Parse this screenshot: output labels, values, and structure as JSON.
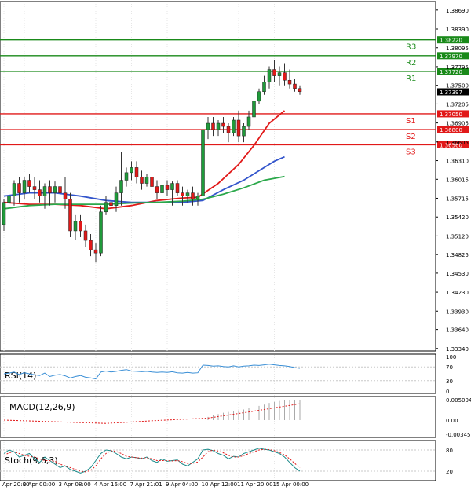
{
  "chart_data": {
    "type": "candlestick",
    "price_axis": {
      "range": [
        1.333,
        1.3875
      ],
      "ticks": [
        "1.38690",
        "1.38390",
        "1.38095",
        "1.37795",
        "1.37500",
        "1.37205",
        "1.36905",
        "1.36605",
        "1.36310",
        "1.36015",
        "1.35715",
        "1.35420",
        "1.35120",
        "1.34825",
        "1.34530",
        "1.34230",
        "1.33930",
        "1.33640",
        "1.33340"
      ]
    },
    "x_labels": [
      "Apr 20:00",
      "2 Apr 00:00",
      "3 Apr 08:00",
      "4 Apr 16:00",
      "7 Apr 21:01",
      "9 Apr 04:00",
      "10 Apr 12:00",
      "11 Apr 20:00",
      "15 Apr 00:00"
    ],
    "current_price": {
      "value": 1.37397,
      "label": "1.37397"
    },
    "levels": [
      {
        "name": "R3",
        "value": 1.3822,
        "label": "1.38220",
        "color": "#1a8a1a"
      },
      {
        "name": "R2",
        "value": 1.3797,
        "label": "1.37970",
        "color": "#1a8a1a"
      },
      {
        "name": "R1",
        "value": 1.3772,
        "label": "1.37720",
        "color": "#1a8a1a"
      },
      {
        "name": "S1",
        "value": 1.3705,
        "label": "1.37050",
        "color": "#e11919"
      },
      {
        "name": "S2",
        "value": 1.368,
        "label": "1.36800",
        "color": "#e11919"
      },
      {
        "name": "S3",
        "value": 1.3656,
        "label": "1.36560",
        "color": "#e11919"
      }
    ],
    "candles": [
      {
        "o": 1.353,
        "h": 1.357,
        "l": 1.352,
        "c": 1.3565
      },
      {
        "o": 1.3565,
        "h": 1.359,
        "l": 1.354,
        "c": 1.3575
      },
      {
        "o": 1.3575,
        "h": 1.36,
        "l": 1.356,
        "c": 1.3595
      },
      {
        "o": 1.3595,
        "h": 1.3605,
        "l": 1.3565,
        "c": 1.358
      },
      {
        "o": 1.358,
        "h": 1.3605,
        "l": 1.357,
        "c": 1.36
      },
      {
        "o": 1.36,
        "h": 1.361,
        "l": 1.358,
        "c": 1.359
      },
      {
        "o": 1.359,
        "h": 1.3605,
        "l": 1.357,
        "c": 1.3585
      },
      {
        "o": 1.3585,
        "h": 1.36,
        "l": 1.3565,
        "c": 1.3575
      },
      {
        "o": 1.3575,
        "h": 1.3595,
        "l": 1.3555,
        "c": 1.359
      },
      {
        "o": 1.359,
        "h": 1.36,
        "l": 1.356,
        "c": 1.358
      },
      {
        "o": 1.358,
        "h": 1.3598,
        "l": 1.3565,
        "c": 1.359
      },
      {
        "o": 1.359,
        "h": 1.3605,
        "l": 1.3575,
        "c": 1.358
      },
      {
        "o": 1.358,
        "h": 1.3605,
        "l": 1.3555,
        "c": 1.357
      },
      {
        "o": 1.357,
        "h": 1.358,
        "l": 1.351,
        "c": 1.352
      },
      {
        "o": 1.352,
        "h": 1.3545,
        "l": 1.3505,
        "c": 1.3535
      },
      {
        "o": 1.3535,
        "h": 1.3545,
        "l": 1.351,
        "c": 1.352
      },
      {
        "o": 1.352,
        "h": 1.353,
        "l": 1.3495,
        "c": 1.3505
      },
      {
        "o": 1.3505,
        "h": 1.3515,
        "l": 1.348,
        "c": 1.349
      },
      {
        "o": 1.349,
        "h": 1.35,
        "l": 1.347,
        "c": 1.3485
      },
      {
        "o": 1.3485,
        "h": 1.356,
        "l": 1.348,
        "c": 1.355
      },
      {
        "o": 1.355,
        "h": 1.3575,
        "l": 1.3545,
        "c": 1.3565
      },
      {
        "o": 1.3565,
        "h": 1.358,
        "l": 1.3555,
        "c": 1.356
      },
      {
        "o": 1.356,
        "h": 1.359,
        "l": 1.355,
        "c": 1.358
      },
      {
        "o": 1.358,
        "h": 1.3645,
        "l": 1.356,
        "c": 1.36
      },
      {
        "o": 1.36,
        "h": 1.362,
        "l": 1.359,
        "c": 1.3612
      },
      {
        "o": 1.3612,
        "h": 1.363,
        "l": 1.36,
        "c": 1.362
      },
      {
        "o": 1.362,
        "h": 1.363,
        "l": 1.3595,
        "c": 1.3605
      },
      {
        "o": 1.3605,
        "h": 1.3615,
        "l": 1.3585,
        "c": 1.3595
      },
      {
        "o": 1.3595,
        "h": 1.361,
        "l": 1.359,
        "c": 1.3605
      },
      {
        "o": 1.3605,
        "h": 1.3612,
        "l": 1.358,
        "c": 1.359
      },
      {
        "o": 1.359,
        "h": 1.36,
        "l": 1.357,
        "c": 1.358
      },
      {
        "o": 1.358,
        "h": 1.3598,
        "l": 1.357,
        "c": 1.3592
      },
      {
        "o": 1.3592,
        "h": 1.36,
        "l": 1.3575,
        "c": 1.3585
      },
      {
        "o": 1.3585,
        "h": 1.3598,
        "l": 1.356,
        "c": 1.3595
      },
      {
        "o": 1.3595,
        "h": 1.36,
        "l": 1.3575,
        "c": 1.358
      },
      {
        "o": 1.358,
        "h": 1.359,
        "l": 1.356,
        "c": 1.3575
      },
      {
        "o": 1.3575,
        "h": 1.3585,
        "l": 1.3565,
        "c": 1.358
      },
      {
        "o": 1.358,
        "h": 1.359,
        "l": 1.356,
        "c": 1.357
      },
      {
        "o": 1.357,
        "h": 1.358,
        "l": 1.356,
        "c": 1.3575
      },
      {
        "o": 1.3575,
        "h": 1.369,
        "l": 1.357,
        "c": 1.368
      },
      {
        "o": 1.368,
        "h": 1.37,
        "l": 1.3665,
        "c": 1.369
      },
      {
        "o": 1.369,
        "h": 1.37,
        "l": 1.367,
        "c": 1.368
      },
      {
        "o": 1.368,
        "h": 1.3695,
        "l": 1.367,
        "c": 1.369
      },
      {
        "o": 1.369,
        "h": 1.37,
        "l": 1.3675,
        "c": 1.3685
      },
      {
        "o": 1.3685,
        "h": 1.369,
        "l": 1.366,
        "c": 1.3675
      },
      {
        "o": 1.3675,
        "h": 1.37,
        "l": 1.367,
        "c": 1.3695
      },
      {
        "o": 1.3695,
        "h": 1.371,
        "l": 1.366,
        "c": 1.367
      },
      {
        "o": 1.367,
        "h": 1.369,
        "l": 1.366,
        "c": 1.3685
      },
      {
        "o": 1.3685,
        "h": 1.371,
        "l": 1.368,
        "c": 1.37
      },
      {
        "o": 1.37,
        "h": 1.3735,
        "l": 1.369,
        "c": 1.3725
      },
      {
        "o": 1.3725,
        "h": 1.3745,
        "l": 1.372,
        "c": 1.374
      },
      {
        "o": 1.374,
        "h": 1.3765,
        "l": 1.3735,
        "c": 1.3755
      },
      {
        "o": 1.3755,
        "h": 1.378,
        "l": 1.3745,
        "c": 1.3775
      },
      {
        "o": 1.3775,
        "h": 1.379,
        "l": 1.3755,
        "c": 1.3765
      },
      {
        "o": 1.3765,
        "h": 1.378,
        "l": 1.375,
        "c": 1.377
      },
      {
        "o": 1.377,
        "h": 1.3785,
        "l": 1.375,
        "c": 1.3758
      },
      {
        "o": 1.3758,
        "h": 1.3775,
        "l": 1.3745,
        "c": 1.3752
      },
      {
        "o": 1.3752,
        "h": 1.376,
        "l": 1.374,
        "c": 1.3745
      },
      {
        "o": 1.3745,
        "h": 1.375,
        "l": 1.3735,
        "c": 1.374
      }
    ],
    "moving_averages": [
      {
        "color": "#e11919",
        "points": [
          [
            0,
            1.3565
          ],
          [
            5,
            1.3562
          ],
          [
            10,
            1.3562
          ],
          [
            15,
            1.356
          ],
          [
            20,
            1.3555
          ],
          [
            25,
            1.356
          ],
          [
            30,
            1.3568
          ],
          [
            35,
            1.3572
          ],
          [
            38,
            1.3573
          ],
          [
            42,
            1.3595
          ],
          [
            46,
            1.3625
          ],
          [
            49,
            1.3655
          ],
          [
            52,
            1.369
          ],
          [
            55,
            1.371
          ]
        ]
      },
      {
        "color": "#3355cc",
        "points": [
          [
            0,
            1.3575
          ],
          [
            5,
            1.358
          ],
          [
            10,
            1.358
          ],
          [
            15,
            1.3575
          ],
          [
            20,
            1.3568
          ],
          [
            25,
            1.3565
          ],
          [
            30,
            1.3565
          ],
          [
            35,
            1.3565
          ],
          [
            39,
            1.3568
          ],
          [
            43,
            1.3585
          ],
          [
            47,
            1.36
          ],
          [
            50,
            1.3615
          ],
          [
            53,
            1.363
          ],
          [
            55,
            1.3637
          ]
        ]
      },
      {
        "color": "#2aa84a",
        "points": [
          [
            0,
            1.3555
          ],
          [
            5,
            1.356
          ],
          [
            10,
            1.3562
          ],
          [
            15,
            1.3562
          ],
          [
            20,
            1.3562
          ],
          [
            25,
            1.3564
          ],
          [
            30,
            1.3565
          ],
          [
            35,
            1.3567
          ],
          [
            39,
            1.357
          ],
          [
            43,
            1.3578
          ],
          [
            47,
            1.3588
          ],
          [
            51,
            1.36
          ],
          [
            55,
            1.3606
          ]
        ]
      }
    ],
    "rsi": {
      "title": "RSI(14)",
      "ticks": [
        "100",
        "70",
        "30",
        "0"
      ],
      "values": [
        50,
        52,
        55,
        48,
        53,
        50,
        47,
        45,
        52,
        42,
        46,
        48,
        44,
        38,
        42,
        45,
        40,
        38,
        35,
        55,
        58,
        55,
        57,
        60,
        62,
        58,
        57,
        56,
        57,
        55,
        54,
        55,
        54,
        56,
        53,
        52,
        54,
        52,
        53,
        75,
        74,
        72,
        73,
        71,
        70,
        73,
        70,
        72,
        73,
        75,
        74,
        76,
        78,
        76,
        74,
        73,
        71,
        68,
        66
      ]
    },
    "macd": {
      "title": "MACD(12,26,9)",
      "ticks": [
        "0.005004",
        "0.00",
        "-0.003457"
      ],
      "signal": [
        [
          0,
          0.0
        ],
        [
          10,
          -0.0004
        ],
        [
          20,
          -0.0008
        ],
        [
          30,
          -0.0001
        ],
        [
          40,
          0.0005
        ],
        [
          48,
          0.002
        ],
        [
          58,
          0.004
        ]
      ],
      "histogram": [
        0.0,
        0.0,
        0.0,
        0.0,
        0.0,
        0.0,
        0.0,
        0.0,
        0.0,
        0.0,
        0.0,
        0.0,
        0.0,
        0.0,
        0.0,
        0.0,
        0.0,
        0.0,
        0.0,
        0.0,
        0.0,
        0.0,
        0.0,
        0.0,
        0.0,
        0.0,
        0.0,
        0.0,
        0.0,
        0.0,
        0.0,
        0.0,
        0.0,
        0.0,
        0.0,
        0.0,
        0.0,
        0.0,
        0.0,
        0.0,
        0.0008,
        0.0012,
        0.0015,
        0.0018,
        0.002,
        0.0022,
        0.0024,
        0.0026,
        0.0029,
        0.0032,
        0.0035,
        0.0038,
        0.0042,
        0.0045,
        0.0047,
        0.0049,
        0.005,
        0.005,
        0.0049
      ]
    },
    "stoch": {
      "title": "Stoch(9,6,3)",
      "ticks": [
        "80",
        "20"
      ],
      "k": [
        70,
        80,
        75,
        60,
        65,
        70,
        55,
        45,
        60,
        50,
        40,
        30,
        35,
        25,
        20,
        15,
        20,
        30,
        50,
        70,
        80,
        78,
        70,
        60,
        55,
        60,
        58,
        55,
        60,
        50,
        45,
        55,
        48,
        50,
        52,
        40,
        35,
        45,
        55,
        80,
        82,
        78,
        70,
        65,
        55,
        62,
        60,
        70,
        75,
        80,
        85,
        82,
        80,
        75,
        70,
        60,
        45,
        30,
        20
      ],
      "d": [
        65,
        72,
        75,
        70,
        65,
        62,
        60,
        55,
        50,
        50,
        48,
        40,
        35,
        30,
        25,
        20,
        18,
        22,
        35,
        55,
        70,
        78,
        76,
        70,
        62,
        60,
        58,
        57,
        58,
        55,
        50,
        50,
        50,
        49,
        50,
        47,
        42,
        42,
        46,
        60,
        75,
        80,
        77,
        72,
        65,
        60,
        60,
        64,
        70,
        75,
        80,
        82,
        81,
        78,
        73,
        66,
        55,
        42,
        30
      ]
    },
    "colors": {
      "bull": "#1f9a3a",
      "bear": "#e11919",
      "grid": "#e6e6e6",
      "axis": "#000000"
    }
  }
}
